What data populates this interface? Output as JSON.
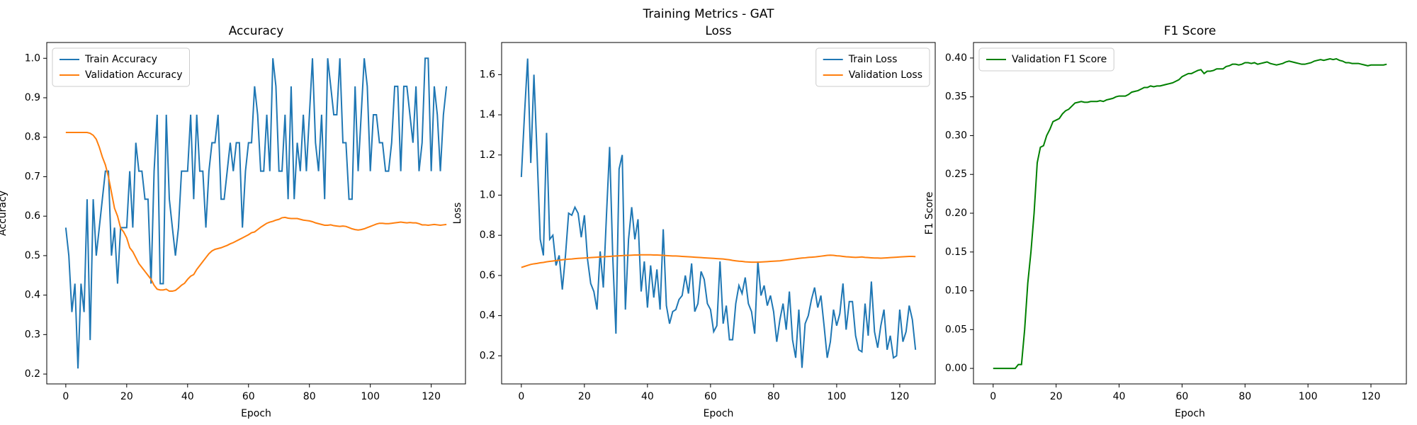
{
  "title": "Training Metrics - GAT",
  "chart_data": [
    {
      "type": "line",
      "title": "Accuracy",
      "xlabel": "Epoch",
      "ylabel": "Accuracy",
      "legend": "upper left",
      "grid": false,
      "xlim": [
        -6.25,
        131.25
      ],
      "xticks": [
        0,
        20,
        40,
        60,
        80,
        100,
        120
      ],
      "ylim": [
        0.175,
        1.04
      ],
      "yticks": [
        0.2,
        0.3,
        0.4,
        0.5,
        0.6,
        0.7,
        0.8,
        0.9,
        {
          "value": 1,
          "label": "1.0"
        }
      ],
      "x": [
        0,
        1,
        2,
        3,
        4,
        5,
        6,
        7,
        8,
        9,
        10,
        11,
        12,
        13,
        14,
        15,
        16,
        17,
        18,
        19,
        20,
        21,
        22,
        23,
        24,
        25,
        26,
        27,
        28,
        29,
        30,
        31,
        32,
        33,
        34,
        35,
        36,
        37,
        38,
        39,
        40,
        41,
        42,
        43,
        44,
        45,
        46,
        47,
        48,
        49,
        50,
        51,
        52,
        53,
        54,
        55,
        56,
        57,
        58,
        59,
        60,
        61,
        62,
        63,
        64,
        65,
        66,
        67,
        68,
        69,
        70,
        71,
        72,
        73,
        74,
        75,
        76,
        77,
        78,
        79,
        80,
        81,
        82,
        83,
        84,
        85,
        86,
        87,
        88,
        89,
        90,
        91,
        92,
        93,
        94,
        95,
        96,
        97,
        98,
        99,
        100,
        101,
        102,
        103,
        104,
        105,
        106,
        107,
        108,
        109,
        110,
        111,
        112,
        113,
        114,
        115,
        116,
        117,
        118,
        119,
        120,
        121,
        122,
        123,
        124,
        125
      ],
      "series": [
        {
          "name": "Train Accuracy",
          "color": "#1f77b4",
          "values": [
            0.571,
            0.5,
            0.357,
            0.429,
            0.214,
            0.429,
            0.357,
            0.643,
            0.286,
            0.643,
            0.5,
            0.571,
            0.643,
            0.714,
            0.714,
            0.5,
            0.571,
            0.429,
            0.571,
            0.571,
            0.571,
            0.714,
            0.571,
            0.786,
            0.714,
            0.714,
            0.643,
            0.643,
            0.429,
            0.714,
            0.857,
            0.429,
            0.429,
            0.857,
            0.643,
            0.571,
            0.5,
            0.571,
            0.714,
            0.714,
            0.714,
            0.857,
            0.643,
            0.857,
            0.714,
            0.714,
            0.571,
            0.714,
            0.786,
            0.786,
            0.857,
            0.643,
            0.643,
            0.714,
            0.786,
            0.714,
            0.786,
            0.786,
            0.571,
            0.714,
            0.786,
            0.786,
            0.929,
            0.857,
            0.714,
            0.714,
            0.857,
            0.714,
            1.0,
            0.929,
            0.714,
            0.714,
            0.857,
            0.643,
            0.929,
            0.643,
            0.786,
            0.714,
            0.857,
            0.714,
            0.857,
            1.0,
            0.786,
            0.714,
            0.857,
            0.643,
            1.0,
            0.929,
            0.857,
            0.857,
            1.0,
            0.786,
            0.786,
            0.643,
            0.643,
            0.929,
            0.714,
            0.857,
            1.0,
            0.929,
            0.714,
            0.857,
            0.857,
            0.786,
            0.786,
            0.714,
            0.714,
            0.786,
            0.929,
            0.929,
            0.714,
            0.929,
            0.929,
            0.857,
            0.786,
            0.929,
            0.714,
            0.786,
            1.0,
            1.0,
            0.714,
            0.929,
            0.857,
            0.714,
            0.857,
            0.929
          ]
        },
        {
          "name": "Validation Accuracy",
          "color": "#ff7f0e",
          "values": [
            0.812,
            0.812,
            0.812,
            0.812,
            0.812,
            0.812,
            0.812,
            0.812,
            0.81,
            0.805,
            0.795,
            0.775,
            0.75,
            0.73,
            0.7,
            0.66,
            0.62,
            0.6,
            0.57,
            0.56,
            0.545,
            0.52,
            0.51,
            0.495,
            0.48,
            0.47,
            0.46,
            0.45,
            0.44,
            0.425,
            0.415,
            0.413,
            0.413,
            0.415,
            0.41,
            0.41,
            0.412,
            0.418,
            0.425,
            0.43,
            0.44,
            0.448,
            0.452,
            0.465,
            0.475,
            0.485,
            0.495,
            0.505,
            0.512,
            0.516,
            0.518,
            0.52,
            0.523,
            0.526,
            0.53,
            0.533,
            0.537,
            0.541,
            0.545,
            0.549,
            0.553,
            0.558,
            0.56,
            0.566,
            0.572,
            0.577,
            0.582,
            0.585,
            0.587,
            0.59,
            0.592,
            0.596,
            0.597,
            0.595,
            0.594,
            0.594,
            0.594,
            0.592,
            0.59,
            0.589,
            0.588,
            0.586,
            0.583,
            0.581,
            0.579,
            0.577,
            0.577,
            0.578,
            0.576,
            0.575,
            0.574,
            0.575,
            0.574,
            0.571,
            0.568,
            0.566,
            0.565,
            0.566,
            0.568,
            0.571,
            0.574,
            0.577,
            0.58,
            0.582,
            0.582,
            0.581,
            0.581,
            0.582,
            0.583,
            0.584,
            0.585,
            0.584,
            0.583,
            0.584,
            0.583,
            0.583,
            0.581,
            0.578,
            0.578,
            0.577,
            0.578,
            0.579,
            0.578,
            0.577,
            0.578,
            0.579
          ]
        }
      ]
    },
    {
      "type": "line",
      "title": "Loss",
      "xlabel": "Epoch",
      "ylabel": "Loss",
      "legend": "upper right",
      "grid": false,
      "xlim": [
        -6.25,
        131.25
      ],
      "xticks": [
        0,
        20,
        40,
        60,
        80,
        100,
        120
      ],
      "ylim": [
        0.06,
        1.76
      ],
      "yticks": [
        0.2,
        0.4,
        0.6,
        0.8,
        {
          "value": 1,
          "label": "1.0"
        },
        1.2,
        1.4,
        1.6
      ],
      "x": [
        0,
        1,
        2,
        3,
        4,
        5,
        6,
        7,
        8,
        9,
        10,
        11,
        12,
        13,
        14,
        15,
        16,
        17,
        18,
        19,
        20,
        21,
        22,
        23,
        24,
        25,
        26,
        27,
        28,
        29,
        30,
        31,
        32,
        33,
        34,
        35,
        36,
        37,
        38,
        39,
        40,
        41,
        42,
        43,
        44,
        45,
        46,
        47,
        48,
        49,
        50,
        51,
        52,
        53,
        54,
        55,
        56,
        57,
        58,
        59,
        60,
        61,
        62,
        63,
        64,
        65,
        66,
        67,
        68,
        69,
        70,
        71,
        72,
        73,
        74,
        75,
        76,
        77,
        78,
        79,
        80,
        81,
        82,
        83,
        84,
        85,
        86,
        87,
        88,
        89,
        90,
        91,
        92,
        93,
        94,
        95,
        96,
        97,
        98,
        99,
        100,
        101,
        102,
        103,
        104,
        105,
        106,
        107,
        108,
        109,
        110,
        111,
        112,
        113,
        114,
        115,
        116,
        117,
        118,
        119,
        120,
        121,
        122,
        123,
        124,
        125
      ],
      "series": [
        {
          "name": "Train Loss",
          "color": "#1f77b4",
          "values": [
            1.09,
            1.4,
            1.68,
            1.16,
            1.6,
            1.2,
            0.78,
            0.7,
            1.31,
            0.78,
            0.8,
            0.65,
            0.7,
            0.53,
            0.7,
            0.91,
            0.9,
            0.94,
            0.91,
            0.79,
            0.9,
            0.68,
            0.56,
            0.52,
            0.43,
            0.72,
            0.54,
            0.9,
            1.24,
            0.69,
            0.31,
            1.13,
            1.2,
            0.43,
            0.78,
            0.94,
            0.78,
            0.88,
            0.52,
            0.67,
            0.44,
            0.65,
            0.49,
            0.63,
            0.43,
            0.83,
            0.45,
            0.36,
            0.42,
            0.43,
            0.48,
            0.5,
            0.6,
            0.51,
            0.66,
            0.42,
            0.46,
            0.62,
            0.58,
            0.46,
            0.43,
            0.32,
            0.35,
            0.67,
            0.36,
            0.45,
            0.28,
            0.28,
            0.46,
            0.55,
            0.51,
            0.59,
            0.46,
            0.42,
            0.31,
            0.67,
            0.5,
            0.55,
            0.45,
            0.5,
            0.42,
            0.27,
            0.38,
            0.46,
            0.33,
            0.52,
            0.28,
            0.19,
            0.43,
            0.14,
            0.36,
            0.4,
            0.48,
            0.54,
            0.44,
            0.5,
            0.35,
            0.19,
            0.27,
            0.43,
            0.35,
            0.41,
            0.56,
            0.33,
            0.47,
            0.47,
            0.3,
            0.23,
            0.22,
            0.46,
            0.3,
            0.57,
            0.32,
            0.24,
            0.35,
            0.43,
            0.23,
            0.3,
            0.19,
            0.2,
            0.43,
            0.27,
            0.32,
            0.45,
            0.38,
            0.23
          ]
        },
        {
          "name": "Validation Loss",
          "color": "#ff7f0e",
          "values": [
            0.64,
            0.645,
            0.65,
            0.655,
            0.658,
            0.66,
            0.663,
            0.665,
            0.668,
            0.67,
            0.672,
            0.674,
            0.676,
            0.678,
            0.68,
            0.681,
            0.682,
            0.684,
            0.685,
            0.686,
            0.687,
            0.688,
            0.689,
            0.69,
            0.691,
            0.692,
            0.693,
            0.694,
            0.695,
            0.696,
            0.697,
            0.698,
            0.699,
            0.7,
            0.7,
            0.701,
            0.702,
            0.702,
            0.703,
            0.703,
            0.703,
            0.703,
            0.702,
            0.702,
            0.701,
            0.7,
            0.699,
            0.698,
            0.697,
            0.697,
            0.696,
            0.695,
            0.694,
            0.693,
            0.692,
            0.691,
            0.69,
            0.689,
            0.688,
            0.687,
            0.686,
            0.685,
            0.684,
            0.683,
            0.682,
            0.68,
            0.678,
            0.675,
            0.673,
            0.671,
            0.67,
            0.668,
            0.667,
            0.666,
            0.666,
            0.666,
            0.667,
            0.668,
            0.669,
            0.67,
            0.671,
            0.672,
            0.673,
            0.675,
            0.677,
            0.679,
            0.681,
            0.683,
            0.685,
            0.687,
            0.688,
            0.69,
            0.691,
            0.692,
            0.694,
            0.696,
            0.698,
            0.7,
            0.701,
            0.7,
            0.698,
            0.697,
            0.695,
            0.693,
            0.692,
            0.691,
            0.69,
            0.691,
            0.692,
            0.69,
            0.689,
            0.688,
            0.687,
            0.687,
            0.686,
            0.687,
            0.688,
            0.689,
            0.69,
            0.691,
            0.692,
            0.693,
            0.694,
            0.695,
            0.695,
            0.694
          ]
        }
      ]
    },
    {
      "type": "line",
      "title": "F1 Score",
      "xlabel": "Epoch",
      "ylabel": "F1 Score",
      "legend": "upper left",
      "grid": false,
      "xlim": [
        -6.25,
        131.25
      ],
      "xticks": [
        0,
        20,
        40,
        60,
        80,
        100,
        120
      ],
      "ylim": [
        -0.02,
        0.42
      ],
      "yticks": [
        {
          "value": 0,
          "label": "0.00"
        },
        0.05,
        {
          "value": 0.1,
          "label": "0.10"
        },
        0.15,
        {
          "value": 0.2,
          "label": "0.20"
        },
        0.25,
        {
          "value": 0.3,
          "label": "0.30"
        },
        0.35,
        {
          "value": 0.4,
          "label": "0.40"
        }
      ],
      "x": [
        0,
        1,
        2,
        3,
        4,
        5,
        6,
        7,
        8,
        9,
        10,
        11,
        12,
        13,
        14,
        15,
        16,
        17,
        18,
        19,
        20,
        21,
        22,
        23,
        24,
        25,
        26,
        27,
        28,
        29,
        30,
        31,
        32,
        33,
        34,
        35,
        36,
        37,
        38,
        39,
        40,
        41,
        42,
        43,
        44,
        45,
        46,
        47,
        48,
        49,
        50,
        51,
        52,
        53,
        54,
        55,
        56,
        57,
        58,
        59,
        60,
        61,
        62,
        63,
        64,
        65,
        66,
        67,
        68,
        69,
        70,
        71,
        72,
        73,
        74,
        75,
        76,
        77,
        78,
        79,
        80,
        81,
        82,
        83,
        84,
        85,
        86,
        87,
        88,
        89,
        90,
        91,
        92,
        93,
        94,
        95,
        96,
        97,
        98,
        99,
        100,
        101,
        102,
        103,
        104,
        105,
        106,
        107,
        108,
        109,
        110,
        111,
        112,
        113,
        114,
        115,
        116,
        117,
        118,
        119,
        120,
        121,
        122,
        123,
        124,
        125
      ],
      "series": [
        {
          "name": "Validation F1 Score",
          "color": "#008000",
          "values": [
            0,
            0,
            0,
            0,
            0,
            0,
            0,
            0,
            0.005,
            0.005,
            0.05,
            0.11,
            0.15,
            0.2,
            0.265,
            0.285,
            0.287,
            0.3,
            0.308,
            0.318,
            0.32,
            0.322,
            0.328,
            0.332,
            0.334,
            0.338,
            0.342,
            0.343,
            0.344,
            0.343,
            0.343,
            0.344,
            0.344,
            0.344,
            0.345,
            0.344,
            0.346,
            0.347,
            0.348,
            0.35,
            0.351,
            0.351,
            0.351,
            0.353,
            0.356,
            0.357,
            0.358,
            0.36,
            0.362,
            0.362,
            0.364,
            0.363,
            0.364,
            0.364,
            0.365,
            0.366,
            0.367,
            0.368,
            0.37,
            0.372,
            0.376,
            0.378,
            0.38,
            0.38,
            0.382,
            0.384,
            0.385,
            0.38,
            0.383,
            0.383,
            0.384,
            0.386,
            0.386,
            0.386,
            0.389,
            0.39,
            0.392,
            0.392,
            0.391,
            0.392,
            0.394,
            0.394,
            0.393,
            0.394,
            0.392,
            0.393,
            0.394,
            0.395,
            0.393,
            0.392,
            0.391,
            0.392,
            0.393,
            0.395,
            0.396,
            0.395,
            0.394,
            0.393,
            0.392,
            0.392,
            0.393,
            0.394,
            0.396,
            0.397,
            0.398,
            0.397,
            0.398,
            0.399,
            0.398,
            0.399,
            0.397,
            0.396,
            0.394,
            0.394,
            0.393,
            0.393,
            0.393,
            0.392,
            0.391,
            0.39,
            0.391,
            0.391,
            0.391,
            0.391,
            0.391,
            0.392
          ]
        }
      ]
    }
  ]
}
